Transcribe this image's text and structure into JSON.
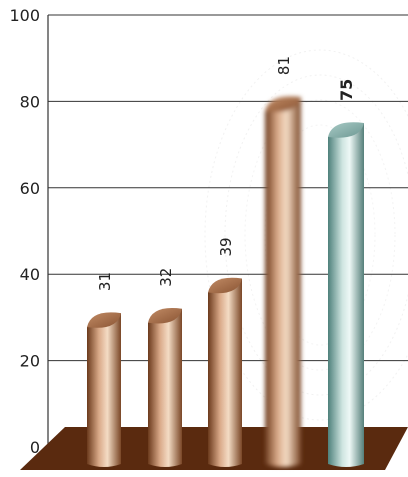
{
  "chart_data": {
    "type": "bar",
    "title": "",
    "xlabel": "",
    "ylabel": "",
    "ylim": [
      0,
      100
    ],
    "yticks": [
      0,
      20,
      40,
      60,
      80,
      100
    ],
    "grid": true,
    "values": [
      31,
      32,
      39,
      81,
      75
    ],
    "value_labels": [
      "31",
      "32",
      "39",
      "81",
      "75"
    ],
    "bar_styles": [
      "bronze",
      "bronze",
      "bronze",
      "bronze-blurred",
      "teal-highlight"
    ],
    "colors": {
      "bronze_dark": "#5a2f14",
      "bronze_mid": "#b57a52",
      "bronze_light": "#f1d2b3",
      "teal_dark": "#4a7a76",
      "teal_mid": "#8fb7b1",
      "teal_light": "#e7f3f0",
      "floor": "#5a2a0f",
      "grid": "#333333"
    }
  }
}
